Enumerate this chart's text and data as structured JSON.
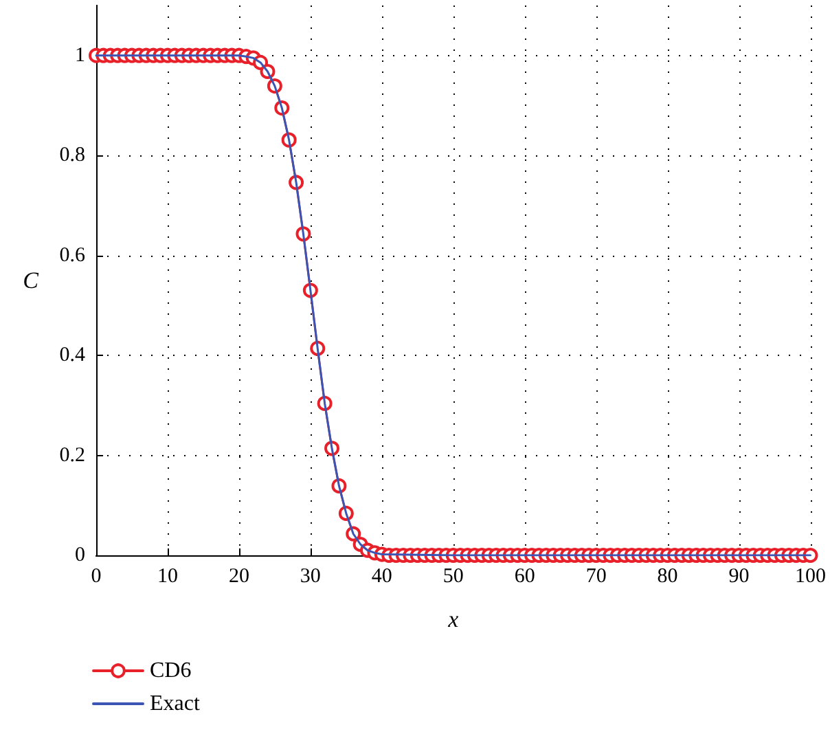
{
  "chart_data": {
    "type": "line",
    "xlabel": "x",
    "ylabel": "C",
    "xlim": [
      0,
      100
    ],
    "xticks": [
      0,
      10,
      20,
      30,
      40,
      50,
      60,
      70,
      80,
      90,
      100
    ],
    "ylim": [
      0,
      1.1
    ],
    "yticks": [
      0,
      0.2,
      0.4,
      0.6,
      0.8,
      1
    ],
    "grid": true,
    "legend": "bottom",
    "line_style": "solid",
    "series": [
      {
        "name": "CD6",
        "color": "#e8202a",
        "marker": "circle",
        "x": [
          0,
          1,
          2,
          3,
          4,
          5,
          6,
          7,
          8,
          9,
          10,
          11,
          12,
          13,
          14,
          15,
          16,
          17,
          18,
          19,
          20,
          21,
          22,
          23,
          24,
          25,
          26,
          27,
          28,
          29,
          30,
          31,
          32,
          33,
          34,
          35,
          36,
          37,
          38,
          39,
          40,
          41,
          42,
          43,
          44,
          45,
          46,
          47,
          48,
          49,
          50,
          51,
          52,
          53,
          54,
          55,
          56,
          57,
          58,
          59,
          60,
          61,
          62,
          63,
          64,
          65,
          66,
          67,
          68,
          69,
          70,
          71,
          72,
          73,
          74,
          75,
          76,
          77,
          78,
          79,
          80,
          81,
          82,
          83,
          84,
          85,
          86,
          87,
          88,
          89,
          90,
          91,
          92,
          93,
          94,
          95,
          96,
          97,
          98,
          99,
          100
        ],
        "values": [
          1,
          1,
          1,
          1,
          1,
          1,
          1,
          1,
          1,
          1,
          1,
          1,
          1,
          1,
          1,
          1,
          1,
          1,
          1,
          1,
          1,
          0.998,
          0.995,
          0.986,
          0.968,
          0.939,
          0.895,
          0.831,
          0.746,
          0.643,
          0.53,
          0.414,
          0.304,
          0.214,
          0.139,
          0.084,
          0.043,
          0.022,
          0.01,
          0.005,
          0.002,
          0,
          0,
          0,
          0,
          0,
          0,
          0,
          0,
          0,
          0,
          0,
          0,
          0,
          0,
          0,
          0,
          0,
          0,
          0,
          0,
          0,
          0,
          0,
          0,
          0,
          0,
          0,
          0,
          0,
          0,
          0,
          0,
          0,
          0,
          0,
          0,
          0,
          0,
          0,
          0,
          0,
          0,
          0,
          0,
          0,
          0,
          0,
          0,
          0,
          0,
          0,
          0,
          0,
          0,
          0,
          0,
          0,
          0,
          0,
          0
        ]
      },
      {
        "name": "Exact",
        "color": "#3a55b4",
        "marker": "none",
        "x": [
          0,
          10,
          20,
          21,
          22,
          23,
          24,
          25,
          26,
          27,
          28,
          29,
          30,
          31,
          32,
          33,
          34,
          35,
          36,
          37,
          38,
          39,
          40,
          50,
          60,
          70,
          80,
          90,
          100
        ],
        "values": [
          1,
          1,
          1,
          0.998,
          0.995,
          0.986,
          0.968,
          0.939,
          0.895,
          0.831,
          0.746,
          0.643,
          0.53,
          0.414,
          0.304,
          0.214,
          0.139,
          0.084,
          0.043,
          0.022,
          0.01,
          0.005,
          0.002,
          0,
          0,
          0,
          0,
          0,
          0
        ]
      }
    ]
  }
}
